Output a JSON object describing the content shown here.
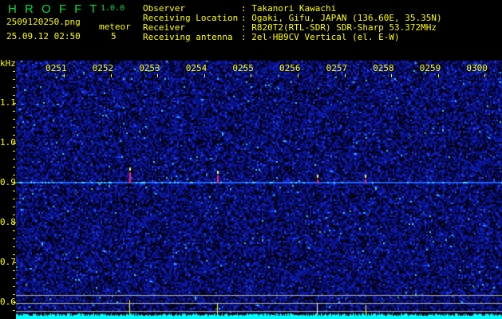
{
  "app": {
    "name": "H R O F F T",
    "version": "1.0.0"
  },
  "file": {
    "name": "2509120250.png",
    "datetime": "25.09.12 02:50"
  },
  "meteor": {
    "label": "meteor",
    "count": "5"
  },
  "info": {
    "labels": [
      "Observer",
      "Receiving Location",
      "Receiver",
      "Receiving antenna"
    ],
    "values": [
      ": Takanori Kawachi",
      ": Ogaki, Gifu, JAPAN (136.60E, 35.35N)",
      ": R820T2(RTL-SDR) SDR-Sharp 53.372MHz",
      ": 2el-HB9CV Vertical (el. E-W)"
    ]
  },
  "axis": {
    "y_unit": "kHz",
    "y_labels": [
      "1.1",
      "1.0",
      "0.9",
      "0.8",
      "0.7",
      "0.6"
    ],
    "x_labels": [
      "0251",
      "0252",
      "0253",
      "0254",
      "0255",
      "0256",
      "0257",
      "0258",
      "0259",
      "0300"
    ]
  },
  "colors": {
    "text": "#ffff00",
    "logo": "#00e040",
    "noise": "#0a1aa0",
    "level": "#00ffff"
  }
}
